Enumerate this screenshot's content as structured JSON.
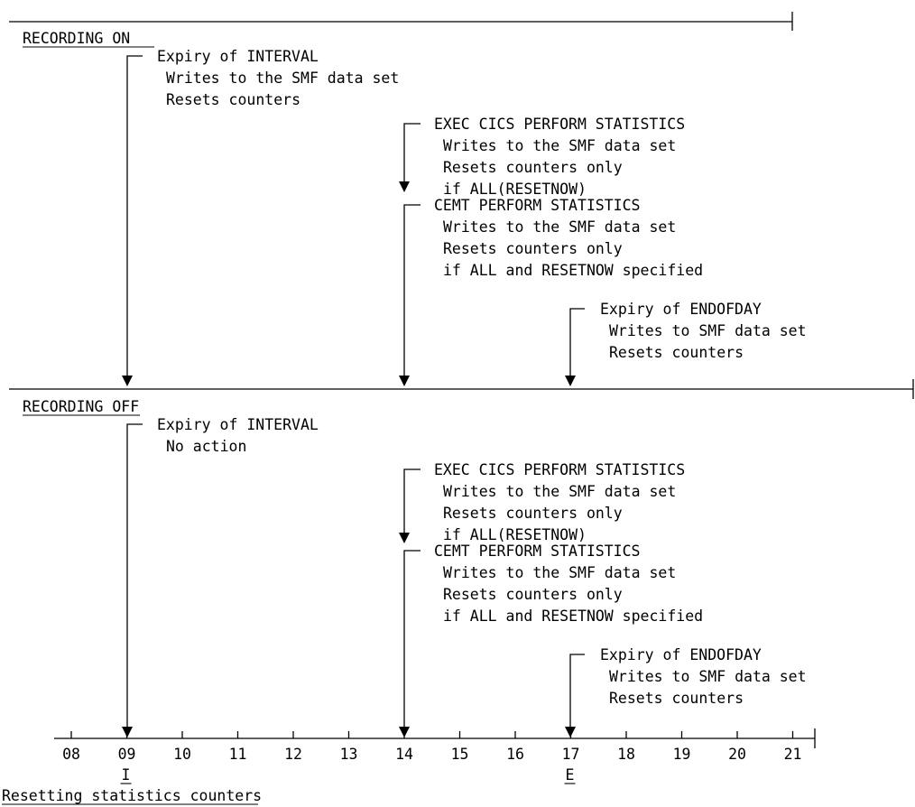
{
  "sections": [
    {
      "heading": "RECORDING ON",
      "events": [
        {
          "title": "Expiry of INTERVAL",
          "lines": [
            "Writes to the SMF data set",
            "Resets counters"
          ]
        },
        {
          "title": "EXEC CICS PERFORM STATISTICS",
          "lines": [
            "Writes to the SMF data set",
            "Resets counters only",
            "if ALL(RESETNOW)"
          ]
        },
        {
          "title": "CEMT PERFORM STATISTICS",
          "lines": [
            "Writes to the SMF data set",
            "Resets counters only",
            "if ALL and RESETNOW specified"
          ]
        },
        {
          "title": "Expiry of ENDOFDAY",
          "lines": [
            "Writes to SMF data set",
            "Resets counters"
          ]
        }
      ]
    },
    {
      "heading": "RECORDING OFF",
      "events": [
        {
          "title": "Expiry of INTERVAL",
          "lines": [
            "No action"
          ]
        },
        {
          "title": "EXEC CICS PERFORM STATISTICS",
          "lines": [
            "Writes to the SMF data set",
            "Resets counters only",
            "if ALL(RESETNOW)"
          ]
        },
        {
          "title": "CEMT PERFORM STATISTICS",
          "lines": [
            "Writes to the SMF data set",
            "Resets counters only",
            "if ALL and RESETNOW specified"
          ]
        },
        {
          "title": "Expiry of ENDOFDAY",
          "lines": [
            "Writes to SMF data set",
            "Resets counters"
          ]
        }
      ]
    }
  ],
  "timeline": {
    "ticks": [
      "08",
      "09",
      "10",
      "11",
      "12",
      "13",
      "14",
      "15",
      "16",
      "17",
      "18",
      "19",
      "20",
      "21"
    ],
    "markers": [
      {
        "tick": "09",
        "label": "I"
      },
      {
        "tick": "17",
        "label": "E"
      }
    ]
  },
  "caption": "Resetting statistics counters"
}
